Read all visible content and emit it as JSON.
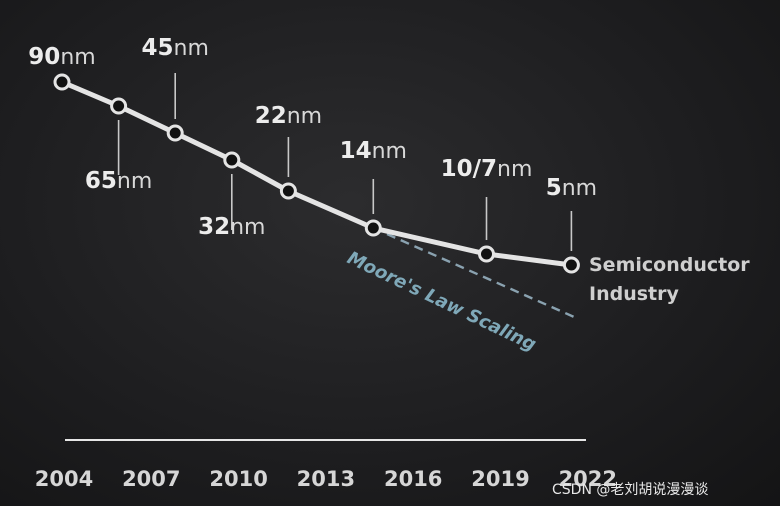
{
  "chart_data": {
    "type": "line",
    "title": "",
    "xlabel": "",
    "ylabel": "",
    "categories": [
      "2004",
      "2007",
      "2010",
      "2013",
      "2016",
      "2019",
      "2022"
    ],
    "series": [
      {
        "name": "Semiconductor Industry",
        "points": [
          {
            "year": 2004,
            "value": 90,
            "num": "90",
            "unit": "nm"
          },
          {
            "year": 2006,
            "value": 65,
            "num": "65",
            "unit": "nm"
          },
          {
            "year": 2008,
            "value": 45,
            "num": "45",
            "unit": "nm"
          },
          {
            "year": 2010,
            "value": 32,
            "num": "32",
            "unit": "nm"
          },
          {
            "year": 2012,
            "value": 22,
            "num": "22",
            "unit": "nm"
          },
          {
            "year": 2015,
            "value": 14,
            "num": "14",
            "unit": "nm"
          },
          {
            "year": 2019,
            "value": 7,
            "num": "10/7",
            "unit": "nm"
          },
          {
            "year": 2022,
            "value": 5,
            "num": "5",
            "unit": "nm"
          }
        ]
      },
      {
        "name": "Moore's Law Scaling",
        "style": "dashed",
        "color": "#8aa2b0",
        "from_year": 2015,
        "to_year": 2022
      }
    ],
    "series_label_lines": [
      "Semiconductor",
      "Industry"
    ],
    "trend_label": "Moore's Law Scaling",
    "grid": false,
    "colors": {
      "line": "#e4e4e4",
      "marker_fill": "#111111",
      "marker_stroke": "#e4e4e4",
      "axis": "#e6e6e6",
      "trend": "#8aa2b0"
    }
  },
  "watermark": "CSDN @老刘胡说漫漫谈"
}
